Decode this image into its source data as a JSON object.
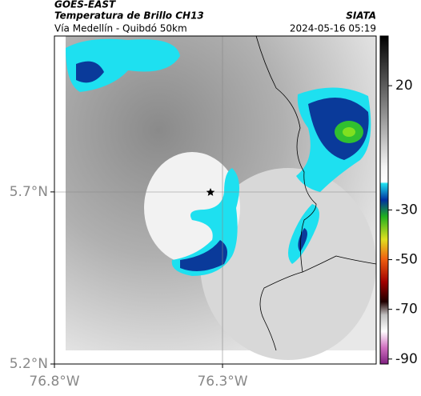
{
  "header": {
    "satellite": "GOES-EAST",
    "product": "Temperatura de Brillo CH13",
    "route": "Vía Medellín - Quibdó 50km",
    "source": "SIATA",
    "timestamp": "2024-05-16 05:19"
  },
  "map": {
    "lon_lim": [
      -76.8,
      -75.843
    ],
    "lat_lim": [
      5.2,
      6.153
    ],
    "lat_ticks": [
      {
        "value": 5.7,
        "label": "5.7°N"
      },
      {
        "value": 5.2,
        "label": "5.2°N"
      }
    ],
    "lon_ticks": [
      {
        "value": -76.8,
        "label": "76.8°W"
      },
      {
        "value": -76.3,
        "label": "76.3°W"
      }
    ]
  },
  "colorbar": {
    "lim": [
      40,
      -92
    ],
    "ticks": [
      20,
      -30,
      -50,
      -70,
      -90
    ]
  }
}
